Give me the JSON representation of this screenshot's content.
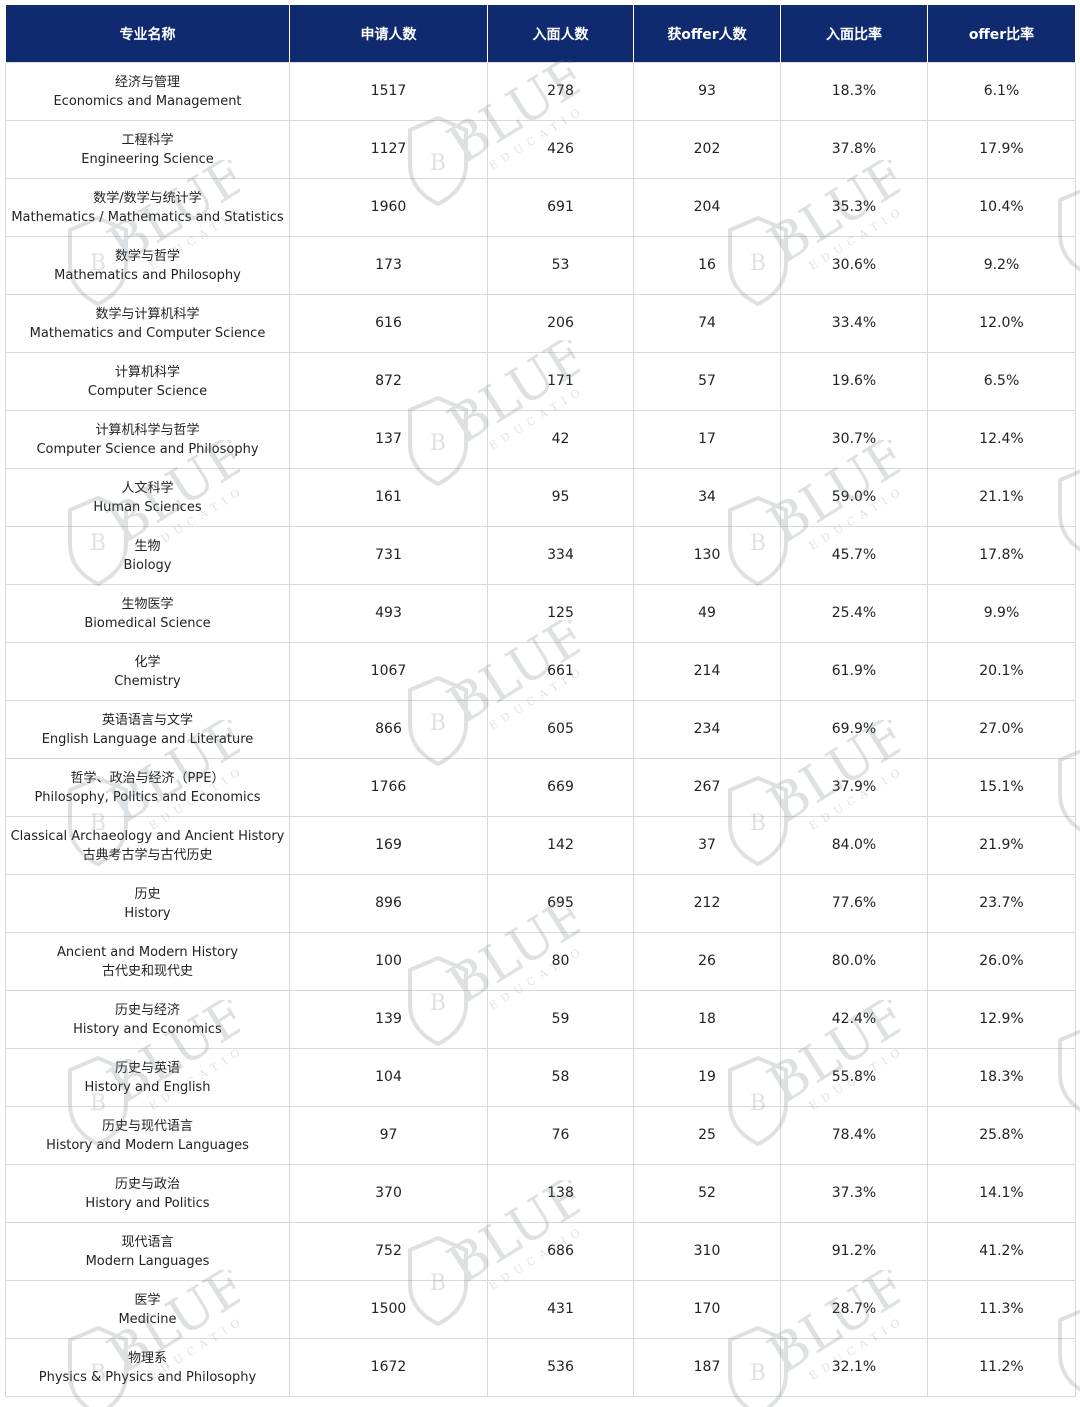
{
  "headers": [
    "专业名称",
    "申请人数",
    "入面人数",
    "获offer人数",
    "入面比率",
    "offer比率"
  ],
  "rows": [
    {
      "line1": "经济与管理",
      "line2": "Economics and Management",
      "applicants": "1517",
      "interviewed": "278",
      "offers": "93",
      "interview_rate": "18.3%",
      "offer_rate": "6.1%"
    },
    {
      "line1": "工程科学",
      "line2": "Engineering Science",
      "applicants": "1127",
      "interviewed": "426",
      "offers": "202",
      "interview_rate": "37.8%",
      "offer_rate": "17.9%"
    },
    {
      "line1": "数学/数学与统计学",
      "line2": "Mathematics / Mathematics and Statistics",
      "applicants": "1960",
      "interviewed": "691",
      "offers": "204",
      "interview_rate": "35.3%",
      "offer_rate": "10.4%"
    },
    {
      "line1": "数学与哲学",
      "line2": "Mathematics and Philosophy",
      "applicants": "173",
      "interviewed": "53",
      "offers": "16",
      "interview_rate": "30.6%",
      "offer_rate": "9.2%"
    },
    {
      "line1": "数学与计算机科学",
      "line2": "Mathematics and Computer Science",
      "applicants": "616",
      "interviewed": "206",
      "offers": "74",
      "interview_rate": "33.4%",
      "offer_rate": "12.0%"
    },
    {
      "line1": "计算机科学",
      "line2": "Computer Science",
      "applicants": "872",
      "interviewed": "171",
      "offers": "57",
      "interview_rate": "19.6%",
      "offer_rate": "6.5%"
    },
    {
      "line1": "计算机科学与哲学",
      "line2": "Computer Science and Philosophy",
      "applicants": "137",
      "interviewed": "42",
      "offers": "17",
      "interview_rate": "30.7%",
      "offer_rate": "12.4%"
    },
    {
      "line1": "人文科学",
      "line2": "Human Sciences",
      "applicants": "161",
      "interviewed": "95",
      "offers": "34",
      "interview_rate": "59.0%",
      "offer_rate": "21.1%"
    },
    {
      "line1": "生物",
      "line2": "Biology",
      "applicants": "731",
      "interviewed": "334",
      "offers": "130",
      "interview_rate": "45.7%",
      "offer_rate": "17.8%"
    },
    {
      "line1": "生物医学",
      "line2": "Biomedical Science",
      "applicants": "493",
      "interviewed": "125",
      "offers": "49",
      "interview_rate": "25.4%",
      "offer_rate": "9.9%"
    },
    {
      "line1": "化学",
      "line2": "Chemistry",
      "applicants": "1067",
      "interviewed": "661",
      "offers": "214",
      "interview_rate": "61.9%",
      "offer_rate": "20.1%"
    },
    {
      "line1": "英语语言与文学",
      "line2": "English Language and Literature",
      "applicants": "866",
      "interviewed": "605",
      "offers": "234",
      "interview_rate": "69.9%",
      "offer_rate": "27.0%"
    },
    {
      "line1": "哲学、政治与经济（PPE）",
      "line2": "Philosophy, Politics and Economics",
      "applicants": "1766",
      "interviewed": "669",
      "offers": "267",
      "interview_rate": "37.9%",
      "offer_rate": "15.1%"
    },
    {
      "line1": "Classical Archaeology and Ancient History",
      "line2": "古典考古学与古代历史",
      "applicants": "169",
      "interviewed": "142",
      "offers": "37",
      "interview_rate": "84.0%",
      "offer_rate": "21.9%"
    },
    {
      "line1": "历史",
      "line2": "History",
      "applicants": "896",
      "interviewed": "695",
      "offers": "212",
      "interview_rate": "77.6%",
      "offer_rate": "23.7%"
    },
    {
      "line1": "Ancient and Modern History",
      "line2": "古代史和现代史",
      "applicants": "100",
      "interviewed": "80",
      "offers": "26",
      "interview_rate": "80.0%",
      "offer_rate": "26.0%"
    },
    {
      "line1": "历史与经济",
      "line2": "History and Economics",
      "applicants": "139",
      "interviewed": "59",
      "offers": "18",
      "interview_rate": "42.4%",
      "offer_rate": "12.9%"
    },
    {
      "line1": "历史与英语",
      "line2": "History and English",
      "applicants": "104",
      "interviewed": "58",
      "offers": "19",
      "interview_rate": "55.8%",
      "offer_rate": "18.3%"
    },
    {
      "line1": "历史与现代语言",
      "line2": "History and Modern Languages",
      "applicants": "97",
      "interviewed": "76",
      "offers": "25",
      "interview_rate": "78.4%",
      "offer_rate": "25.8%"
    },
    {
      "line1": "历史与政治",
      "line2": "History and Politics",
      "applicants": "370",
      "interviewed": "138",
      "offers": "52",
      "interview_rate": "37.3%",
      "offer_rate": "14.1%"
    },
    {
      "line1": "现代语言",
      "line2": "Modern Languages",
      "applicants": "752",
      "interviewed": "686",
      "offers": "310",
      "interview_rate": "91.2%",
      "offer_rate": "41.2%"
    },
    {
      "line1": "医学",
      "line2": "Medicine",
      "applicants": "1500",
      "interviewed": "431",
      "offers": "170",
      "interview_rate": "28.7%",
      "offer_rate": "11.3%"
    },
    {
      "line1": "物理系",
      "line2": "Physics & Physics and Philosophy",
      "applicants": "1672",
      "interviewed": "536",
      "offers": "187",
      "interview_rate": "32.1%",
      "offer_rate": "11.2%"
    }
  ],
  "watermark": {
    "brand": "BLUE",
    "sub": "EDUCATION",
    "badge_letter": "B",
    "color": "#6b7a8a"
  }
}
